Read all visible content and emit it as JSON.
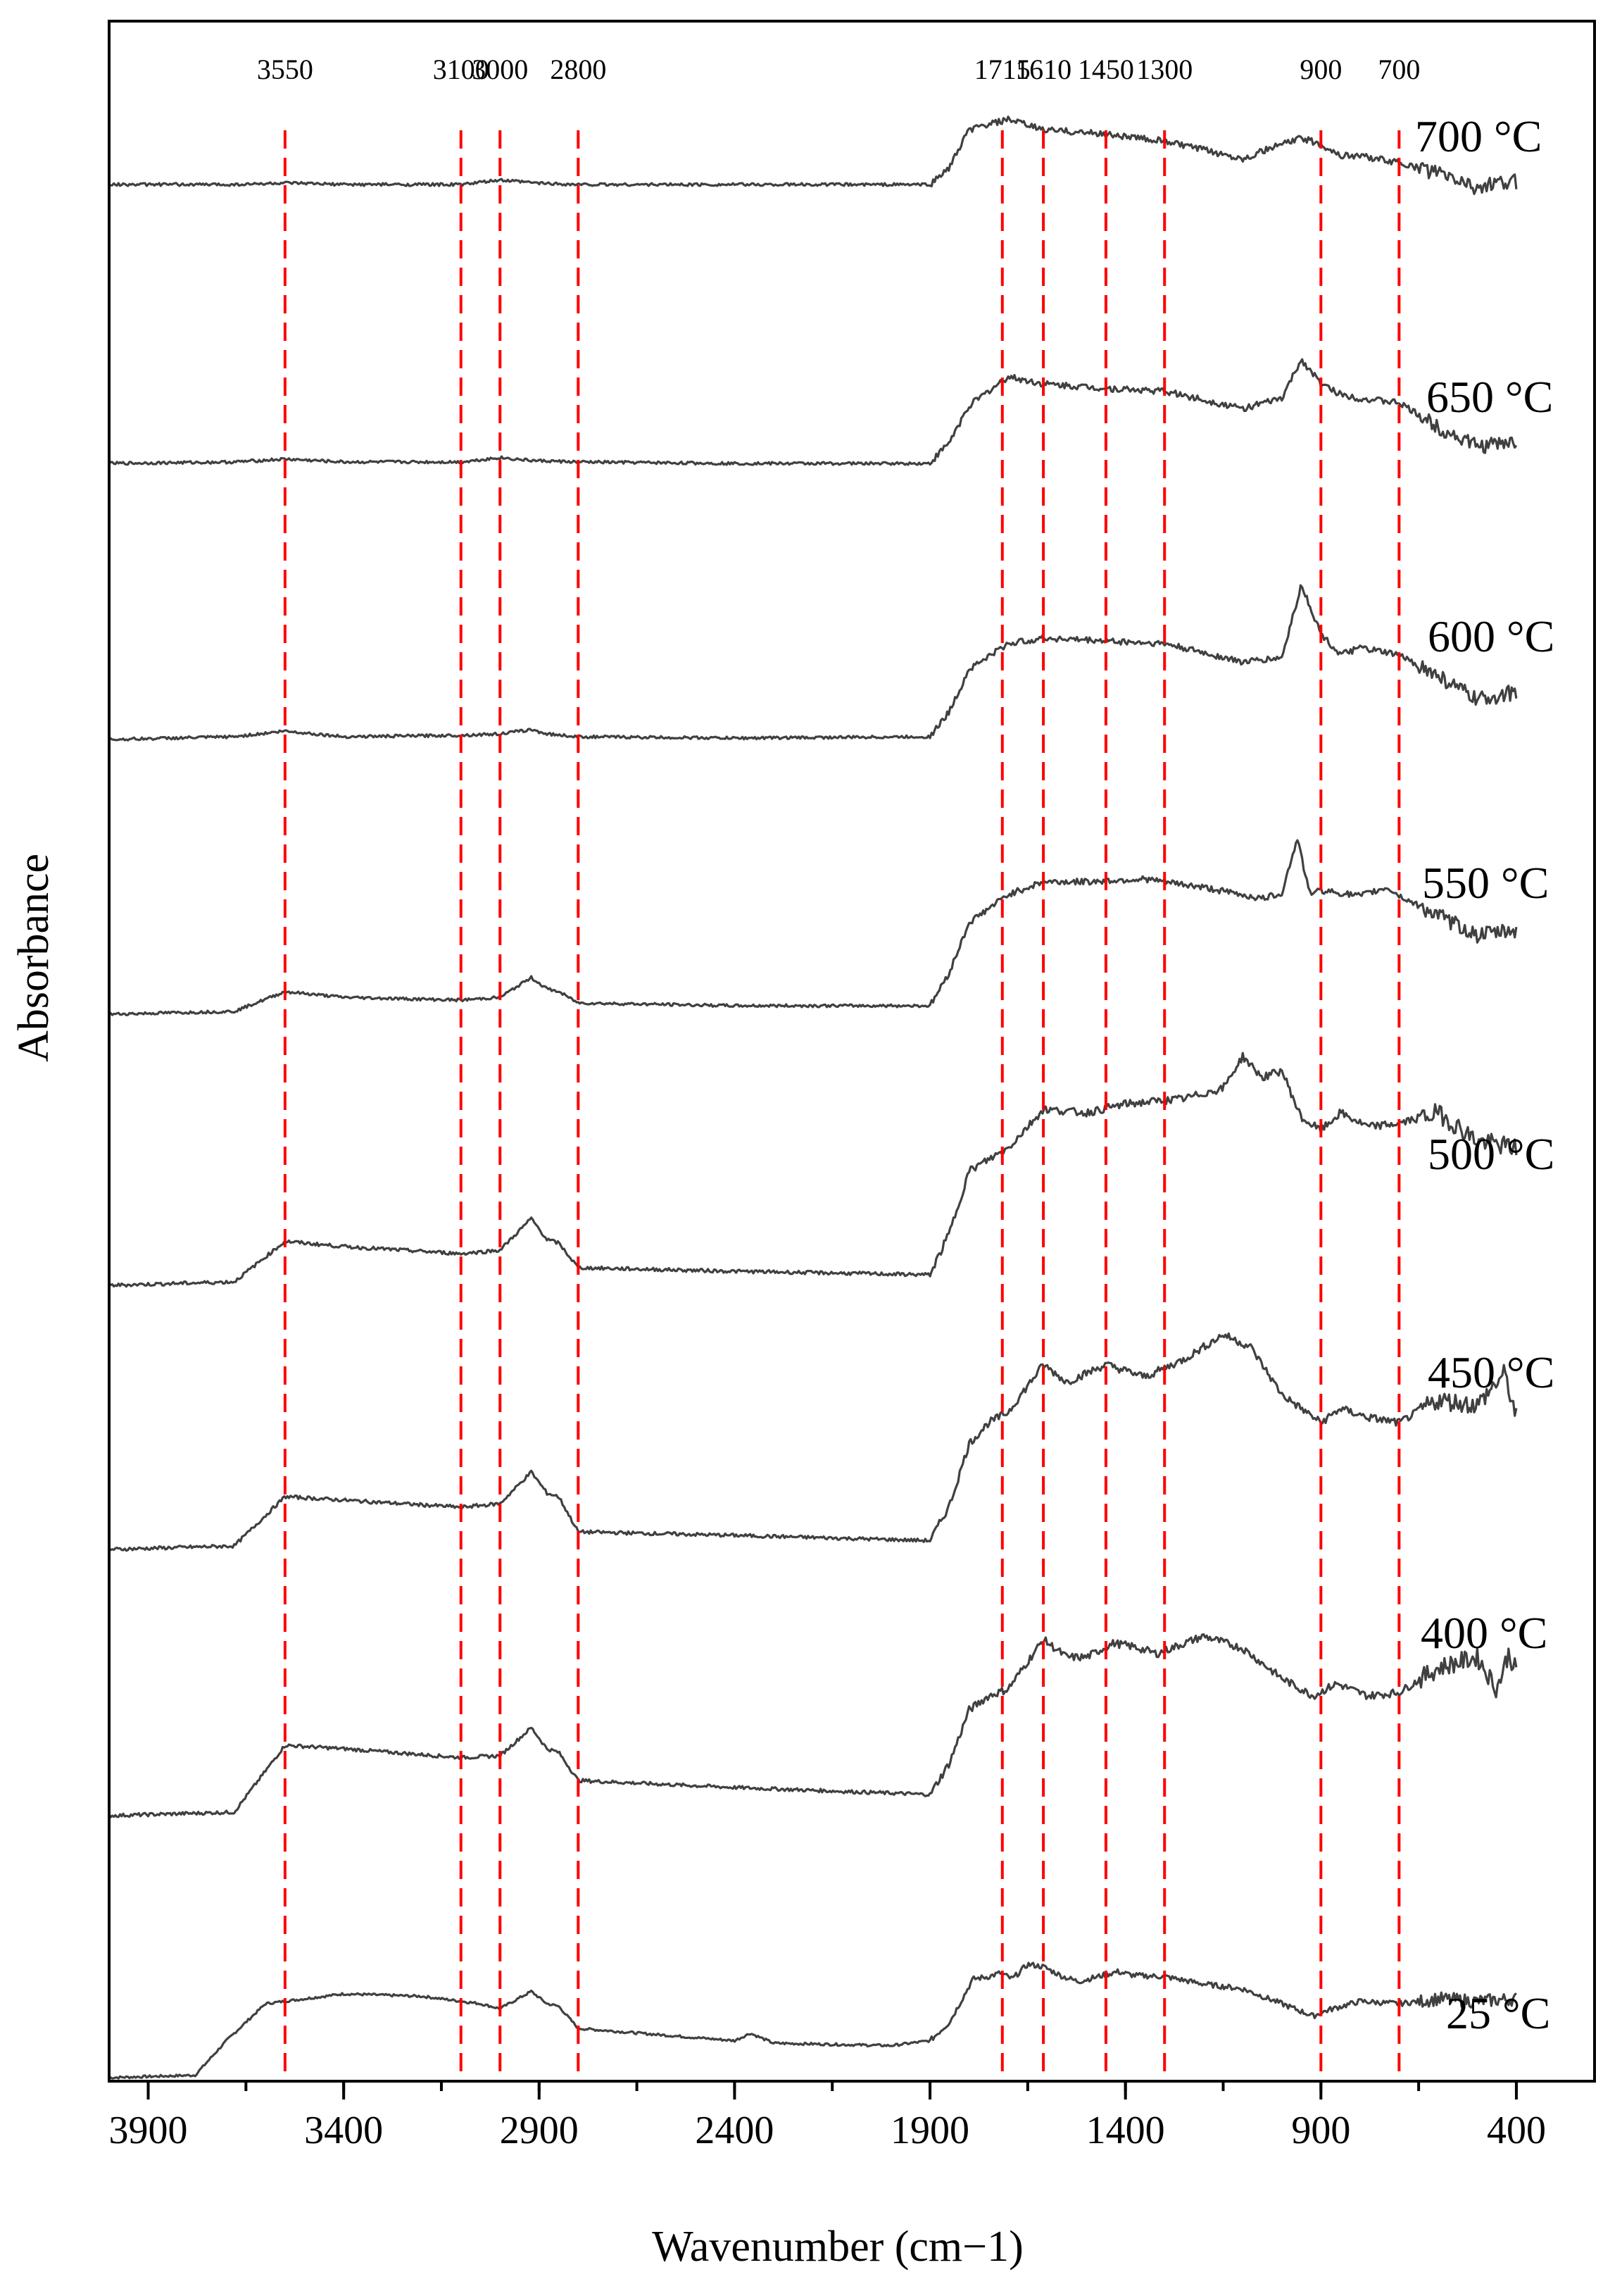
{
  "chart_data": {
    "type": "line",
    "title": "",
    "xlabel": "Wavenumber (cm−1)",
    "ylabel": "Absorbance",
    "xlim": [
      4000,
      200
    ],
    "x_reversed": true,
    "x_ticks": [
      3900,
      3400,
      2900,
      2400,
      1900,
      1400,
      900,
      400
    ],
    "y_ticks": [],
    "grid": false,
    "legend": "none",
    "line_color": "#404040",
    "reference_color": "#ff0000",
    "reference_lines": [
      {
        "x": 3550,
        "label": "3550"
      },
      {
        "x": 3100,
        "label": "3100"
      },
      {
        "x": 3000,
        "label": "3000"
      },
      {
        "x": 2800,
        "label": "2800"
      },
      {
        "x": 1715,
        "label": "1715"
      },
      {
        "x": 1610,
        "label": "1610"
      },
      {
        "x": 1450,
        "label": "1450"
      },
      {
        "x": 1300,
        "label": "1300"
      },
      {
        "x": 900,
        "label": "900"
      },
      {
        "x": 700,
        "label": "700"
      }
    ],
    "series": [
      {
        "name": "25 °C",
        "baseline": 0,
        "points": [
          [
            4000,
            0
          ],
          [
            3780,
            0.02
          ],
          [
            3700,
            0.3
          ],
          [
            3600,
            0.6
          ],
          [
            3400,
            0.68
          ],
          [
            3200,
            0.66
          ],
          [
            3050,
            0.6
          ],
          [
            3000,
            0.56
          ],
          [
            2920,
            0.7
          ],
          [
            2880,
            0.6
          ],
          [
            2850,
            0.58
          ],
          [
            2800,
            0.4
          ],
          [
            2400,
            0.3
          ],
          [
            2360,
            0.36
          ],
          [
            2300,
            0.28
          ],
          [
            2000,
            0.26
          ],
          [
            1900,
            0.3
          ],
          [
            1850,
            0.45
          ],
          [
            1790,
            0.8
          ],
          [
            1750,
            0.82
          ],
          [
            1720,
            0.85
          ],
          [
            1690,
            0.8
          ],
          [
            1650,
            0.92
          ],
          [
            1610,
            0.9
          ],
          [
            1560,
            0.82
          ],
          [
            1520,
            0.78
          ],
          [
            1470,
            0.82
          ],
          [
            1420,
            0.86
          ],
          [
            1380,
            0.83
          ],
          [
            1300,
            0.82
          ],
          [
            1200,
            0.76
          ],
          [
            1100,
            0.72
          ],
          [
            1000,
            0.6
          ],
          [
            920,
            0.5
          ],
          [
            880,
            0.55
          ],
          [
            800,
            0.62
          ],
          [
            700,
            0.6
          ],
          [
            600,
            0.64
          ],
          [
            500,
            0.62
          ],
          [
            400,
            0.64
          ]
        ]
      },
      {
        "name": "400 °C",
        "baseline": 1,
        "points": [
          [
            4000,
            0
          ],
          [
            3680,
            0.02
          ],
          [
            3550,
            0.4
          ],
          [
            3400,
            0.38
          ],
          [
            3100,
            0.33
          ],
          [
            3000,
            0.34
          ],
          [
            2920,
            0.5
          ],
          [
            2880,
            0.38
          ],
          [
            2850,
            0.36
          ],
          [
            2800,
            0.2
          ],
          [
            2400,
            0.16
          ],
          [
            1900,
            0.12
          ],
          [
            1850,
            0.3
          ],
          [
            1800,
            0.6
          ],
          [
            1750,
            0.68
          ],
          [
            1700,
            0.72
          ],
          [
            1610,
            1.0
          ],
          [
            1550,
            0.9
          ],
          [
            1500,
            0.9
          ],
          [
            1430,
            0.98
          ],
          [
            1380,
            0.96
          ],
          [
            1320,
            0.92
          ],
          [
            1200,
            1.02
          ],
          [
            1100,
            0.95
          ],
          [
            1000,
            0.78
          ],
          [
            920,
            0.68
          ],
          [
            860,
            0.75
          ],
          [
            780,
            0.68
          ],
          [
            700,
            0.7
          ],
          [
            600,
            0.84
          ],
          [
            500,
            0.9
          ],
          [
            450,
            0.72
          ],
          [
            420,
            0.92
          ],
          [
            400,
            0.82
          ]
        ]
      },
      {
        "name": "450 °C",
        "baseline": 2,
        "points": [
          [
            4000,
            0
          ],
          [
            3680,
            0.02
          ],
          [
            3550,
            0.3
          ],
          [
            3400,
            0.28
          ],
          [
            3100,
            0.24
          ],
          [
            3000,
            0.26
          ],
          [
            2920,
            0.44
          ],
          [
            2880,
            0.32
          ],
          [
            2850,
            0.3
          ],
          [
            2800,
            0.1
          ],
          [
            2400,
            0.08
          ],
          [
            1900,
            0.05
          ],
          [
            1850,
            0.25
          ],
          [
            1800,
            0.6
          ],
          [
            1750,
            0.72
          ],
          [
            1700,
            0.78
          ],
          [
            1610,
            1.05
          ],
          [
            1550,
            0.95
          ],
          [
            1450,
            1.05
          ],
          [
            1350,
            0.98
          ],
          [
            1250,
            1.08
          ],
          [
            1150,
            1.22
          ],
          [
            1080,
            1.15
          ],
          [
            1000,
            0.88
          ],
          [
            900,
            0.72
          ],
          [
            850,
            0.8
          ],
          [
            780,
            0.75
          ],
          [
            700,
            0.72
          ],
          [
            600,
            0.85
          ],
          [
            500,
            0.82
          ],
          [
            430,
            1.0
          ],
          [
            400,
            0.75
          ]
        ]
      },
      {
        "name": "500 °C",
        "baseline": 3,
        "points": [
          [
            4000,
            0
          ],
          [
            3680,
            0.02
          ],
          [
            3550,
            0.25
          ],
          [
            3400,
            0.22
          ],
          [
            3100,
            0.18
          ],
          [
            3000,
            0.2
          ],
          [
            2920,
            0.38
          ],
          [
            2880,
            0.26
          ],
          [
            2850,
            0.24
          ],
          [
            2800,
            0.1
          ],
          [
            2400,
            0.08
          ],
          [
            1900,
            0.06
          ],
          [
            1850,
            0.3
          ],
          [
            1800,
            0.65
          ],
          [
            1700,
            0.78
          ],
          [
            1610,
            1.0
          ],
          [
            1500,
            0.98
          ],
          [
            1400,
            1.03
          ],
          [
            1250,
            1.06
          ],
          [
            1150,
            1.12
          ],
          [
            1100,
            1.3
          ],
          [
            1050,
            1.18
          ],
          [
            1000,
            1.22
          ],
          [
            950,
            0.95
          ],
          [
            900,
            0.88
          ],
          [
            850,
            0.98
          ],
          [
            780,
            0.9
          ],
          [
            700,
            0.92
          ],
          [
            600,
            0.98
          ],
          [
            500,
            0.82
          ],
          [
            400,
            0.78
          ]
        ]
      },
      {
        "name": "550 °C",
        "baseline": 4,
        "points": [
          [
            4000,
            0
          ],
          [
            3680,
            0.02
          ],
          [
            3550,
            0.16
          ],
          [
            3400,
            0.12
          ],
          [
            3100,
            0.1
          ],
          [
            3000,
            0.12
          ],
          [
            2920,
            0.26
          ],
          [
            2880,
            0.18
          ],
          [
            2850,
            0.16
          ],
          [
            2800,
            0.08
          ],
          [
            2400,
            0.06
          ],
          [
            1900,
            0.06
          ],
          [
            1850,
            0.3
          ],
          [
            1800,
            0.65
          ],
          [
            1700,
            0.85
          ],
          [
            1610,
            0.94
          ],
          [
            1500,
            0.94
          ],
          [
            1350,
            0.96
          ],
          [
            1200,
            0.9
          ],
          [
            1050,
            0.82
          ],
          [
            1000,
            0.86
          ],
          [
            960,
            1.25
          ],
          [
            930,
            0.86
          ],
          [
            900,
            0.88
          ],
          [
            800,
            0.84
          ],
          [
            730,
            0.9
          ],
          [
            700,
            0.84
          ],
          [
            600,
            0.7
          ],
          [
            500,
            0.56
          ],
          [
            400,
            0.6
          ]
        ]
      },
      {
        "name": "600 °C",
        "baseline": 5,
        "points": [
          [
            4000,
            0
          ],
          [
            3680,
            0.02
          ],
          [
            3550,
            0.06
          ],
          [
            3400,
            0.02
          ],
          [
            3100,
            0.03
          ],
          [
            3000,
            0.04
          ],
          [
            2920,
            0.07
          ],
          [
            2880,
            0.04
          ],
          [
            2800,
            0.02
          ],
          [
            2400,
            0.01
          ],
          [
            1900,
            0.02
          ],
          [
            1850,
            0.2
          ],
          [
            1800,
            0.5
          ],
          [
            1700,
            0.68
          ],
          [
            1610,
            0.72
          ],
          [
            1450,
            0.7
          ],
          [
            1300,
            0.68
          ],
          [
            1100,
            0.55
          ],
          [
            1000,
            0.58
          ],
          [
            950,
            1.1
          ],
          [
            900,
            0.75
          ],
          [
            850,
            0.6
          ],
          [
            800,
            0.65
          ],
          [
            700,
            0.6
          ],
          [
            600,
            0.45
          ],
          [
            500,
            0.28
          ],
          [
            400,
            0.34
          ]
        ]
      },
      {
        "name": "650 °C",
        "baseline": 6,
        "points": [
          [
            4000,
            0
          ],
          [
            3680,
            0.01
          ],
          [
            3550,
            0.03
          ],
          [
            3400,
            0.01
          ],
          [
            3100,
            0.01
          ],
          [
            3000,
            0.04
          ],
          [
            2920,
            0.02
          ],
          [
            2800,
            0.01
          ],
          [
            2400,
            0.0
          ],
          [
            1900,
            0.0
          ],
          [
            1850,
            0.15
          ],
          [
            1800,
            0.4
          ],
          [
            1700,
            0.6
          ],
          [
            1610,
            0.55
          ],
          [
            1450,
            0.52
          ],
          [
            1300,
            0.5
          ],
          [
            1100,
            0.38
          ],
          [
            1000,
            0.45
          ],
          [
            950,
            0.72
          ],
          [
            900,
            0.55
          ],
          [
            850,
            0.48
          ],
          [
            800,
            0.45
          ],
          [
            700,
            0.42
          ],
          [
            600,
            0.25
          ],
          [
            500,
            0.12
          ],
          [
            400,
            0.15
          ]
        ]
      },
      {
        "name": "700 °C",
        "baseline": 7,
        "points": [
          [
            4000,
            0
          ],
          [
            3680,
            0.0
          ],
          [
            3550,
            0.01
          ],
          [
            3400,
            0.0
          ],
          [
            3100,
            0.0
          ],
          [
            3000,
            0.03
          ],
          [
            2900,
            0.01
          ],
          [
            2800,
            0.0
          ],
          [
            2400,
            0.0
          ],
          [
            1900,
            0.0
          ],
          [
            1850,
            0.12
          ],
          [
            1800,
            0.38
          ],
          [
            1700,
            0.45
          ],
          [
            1610,
            0.38
          ],
          [
            1450,
            0.35
          ],
          [
            1300,
            0.3
          ],
          [
            1100,
            0.18
          ],
          [
            1000,
            0.28
          ],
          [
            950,
            0.32
          ],
          [
            900,
            0.28
          ],
          [
            850,
            0.2
          ],
          [
            800,
            0.2
          ],
          [
            700,
            0.15
          ],
          [
            600,
            0.08
          ],
          [
            500,
            -0.02
          ],
          [
            400,
            0.02
          ]
        ]
      }
    ]
  }
}
